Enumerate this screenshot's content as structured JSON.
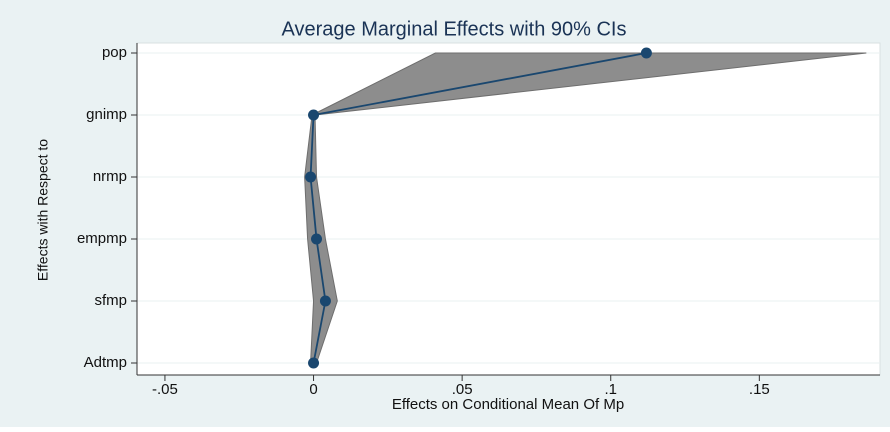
{
  "chart_data": {
    "type": "line",
    "orientation": "horizontal",
    "title": "Average Marginal Effects with 90% CIs",
    "x_label": "Effects on Conditional Mean Of Mp",
    "y_label": "Effects with Respect to",
    "categories": [
      "pop",
      "gnimp",
      "nrmp",
      "empmp",
      "sfmp",
      "Adtmp"
    ],
    "values": [
      0.112,
      0.0,
      -0.001,
      0.001,
      0.004,
      0.0
    ],
    "ci_lower": [
      0.041,
      -0.0005,
      -0.003,
      -0.002,
      0.0,
      -0.001
    ],
    "ci_upper": [
      0.186,
      0.0005,
      0.001,
      0.004,
      0.008,
      0.001
    ],
    "color": "#1a476f",
    "band_color": "#8d8d8d",
    "xlim": [
      -0.0594,
      0.1906
    ],
    "xticks": [
      {
        "value": -0.05,
        "label": "-.05"
      },
      0,
      {
        "value": 0.05,
        "label": ".05"
      },
      {
        "value": 0.1,
        "label": ".1"
      },
      {
        "value": 0.15,
        "label": ".15"
      }
    ],
    "grid": true
  }
}
